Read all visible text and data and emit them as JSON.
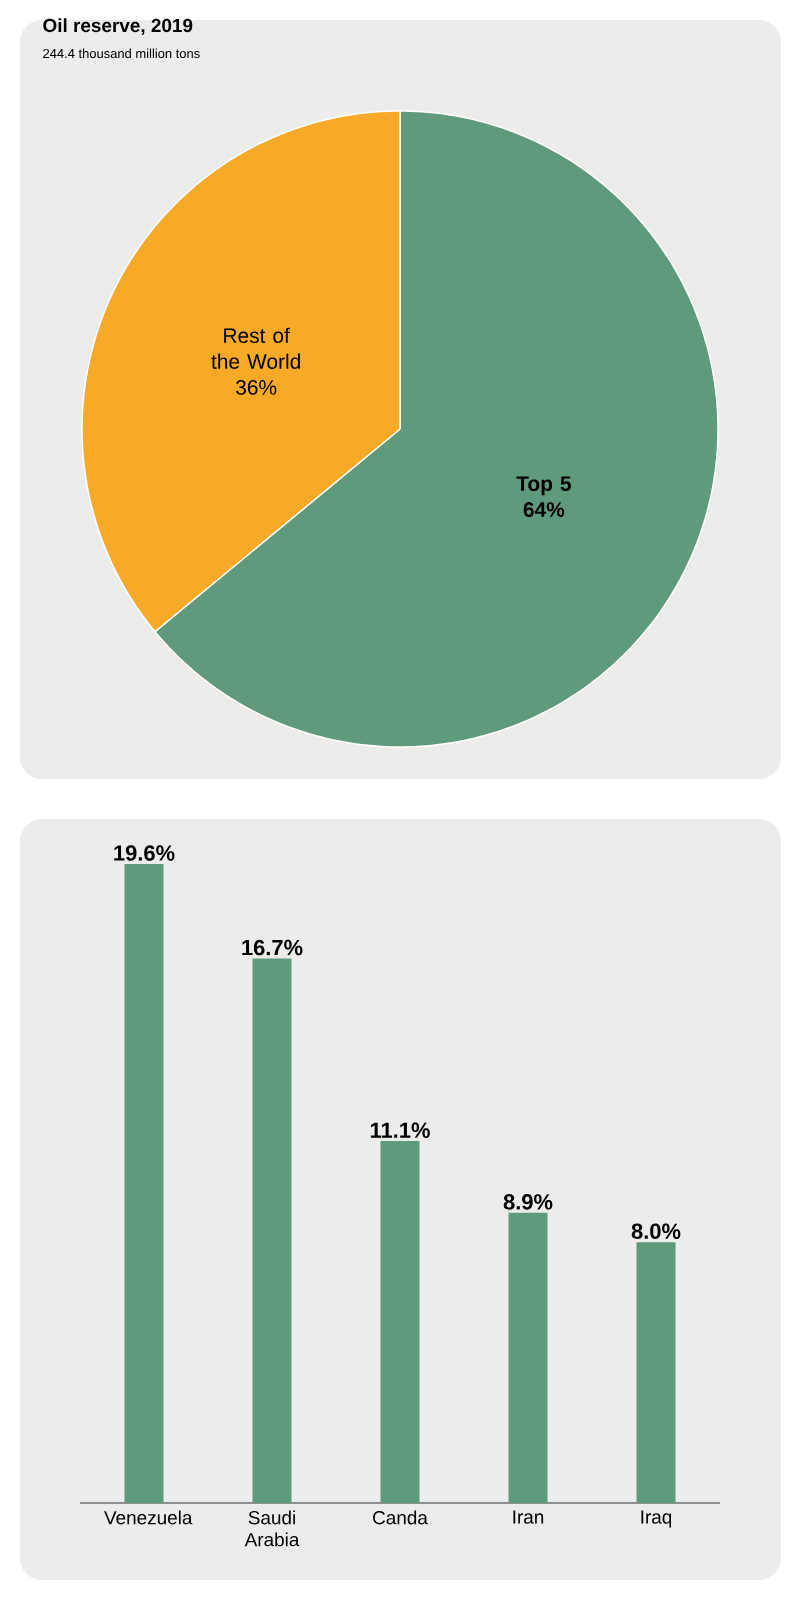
{
  "chart_data": [
    {
      "type": "pie",
      "title": "Oil reserve, 2019",
      "subtitle": "244.4 thousand million tons",
      "categories": [
        "Top 5",
        "Rest of the World"
      ],
      "values": [
        64,
        36
      ],
      "colors": [
        "#5f9a7d",
        "#f7a928"
      ],
      "value_labels": [
        "64%",
        "36%"
      ]
    },
    {
      "type": "bar",
      "categories": [
        "Venezuela",
        "Saudi Arabia",
        "Canda",
        "Iran",
        "Iraq"
      ],
      "values": [
        19.6,
        16.7,
        11.1,
        8.9,
        8.0
      ],
      "color": "#5f9a7d",
      "value_labels": [
        "19.6%",
        "16.7%",
        "11.1%",
        "8.9%",
        "8.0%"
      ]
    }
  ]
}
